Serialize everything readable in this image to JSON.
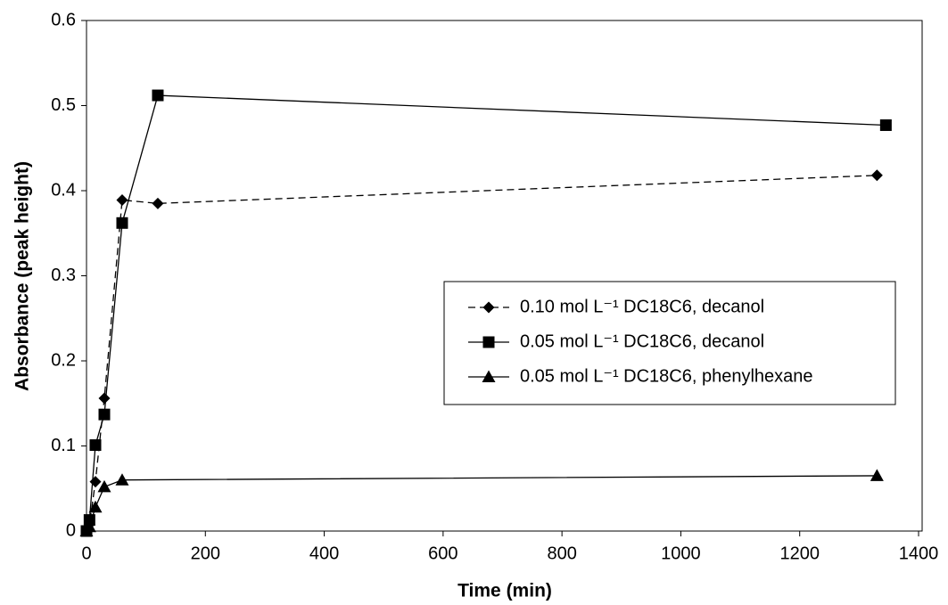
{
  "chart_data": {
    "type": "line",
    "xlabel": "Time (min)",
    "ylabel": "Absorbance (peak height)",
    "xlim": [
      0,
      1400
    ],
    "xticks": [
      0,
      200,
      400,
      600,
      800,
      1000,
      1200,
      1400
    ],
    "ylim": [
      0,
      0.6
    ],
    "yticks": [
      0,
      0.1,
      0.2,
      0.3,
      0.4,
      0.5,
      0.6
    ],
    "legend": "center right",
    "series": [
      {
        "name": "0.10 mol L⁻¹ DC18C6, decanol",
        "color": "#000000",
        "marker": "diamond",
        "dash": true,
        "x": [
          0,
          5,
          15,
          30,
          60,
          120,
          1330
        ],
        "values": [
          0,
          0.008,
          0.058,
          0.156,
          0.389,
          0.385,
          0.418
        ]
      },
      {
        "name": "0.05 mol L⁻¹ DC18C6, decanol",
        "color": "#000000",
        "marker": "square",
        "dash": false,
        "x": [
          0,
          5,
          15,
          30,
          60,
          120,
          1345
        ],
        "values": [
          0,
          0.013,
          0.101,
          0.137,
          0.362,
          0.512,
          0.477
        ]
      },
      {
        "name": "0.05 mol L⁻¹ DC18C6, phenylhexane",
        "color": "#000000",
        "marker": "triangle",
        "dash": false,
        "x": [
          0,
          5,
          15,
          30,
          60,
          1330
        ],
        "values": [
          0,
          0.005,
          0.028,
          0.052,
          0.06,
          0.065
        ]
      }
    ]
  }
}
